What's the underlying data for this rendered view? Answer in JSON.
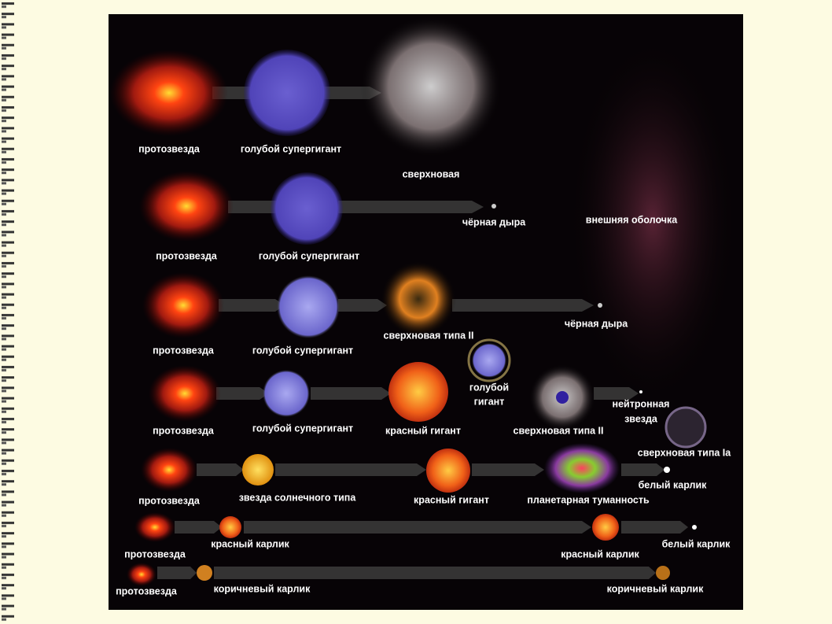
{
  "rows": [
    [
      "протозвезда",
      "голубой супергигант",
      "сверхновая",
      "внешняя оболочка"
    ],
    [
      "протозвезда",
      "голубой супергигант",
      "чёрная дыра"
    ],
    [
      "протозвезда",
      "голубой супергигант",
      "сверхновая типа II",
      "чёрная дыра"
    ],
    [
      "протозвезда",
      "голубой супергигант",
      "красный гигант",
      [
        "голубой",
        "гигант"
      ],
      "сверхновая типа II",
      [
        "нейтронная",
        "звезда"
      ],
      "сверхновая типа Ia"
    ],
    [
      "протозвезда",
      "звезда солнечного типа",
      "красный гигант",
      "планетарная туманность",
      "белый карлик"
    ],
    [
      "протозвезда",
      "красный карлик",
      "красный карлик",
      "белый карлик"
    ],
    [
      "протозвезда",
      "коричневый карлик",
      "коричневый карлик"
    ]
  ]
}
